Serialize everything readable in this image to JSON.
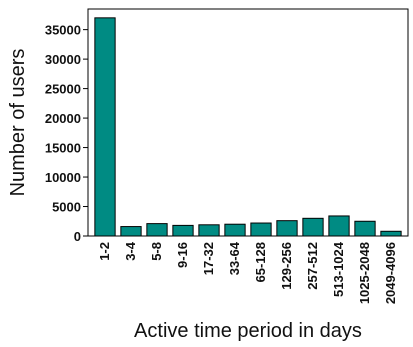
{
  "chart_data": {
    "type": "bar",
    "categories": [
      "1-2",
      "3-4",
      "5-8",
      "9-16",
      "17-32",
      "33-64",
      "65-128",
      "129-256",
      "257-512",
      "513-1024",
      "1025-2048",
      "2049-4096"
    ],
    "values": [
      37000,
      1600,
      2100,
      1800,
      1900,
      2000,
      2200,
      2600,
      3000,
      3400,
      2500,
      800
    ],
    "xlabel": "Active time period in days",
    "ylabel": "Number of users",
    "yticks": [
      0,
      5000,
      10000,
      15000,
      20000,
      25000,
      30000,
      35000
    ],
    "ylim": [
      0,
      38500
    ],
    "bar_color": "#008b83",
    "bar_edge_color": "#000000",
    "grid": false,
    "legend": "none"
  }
}
